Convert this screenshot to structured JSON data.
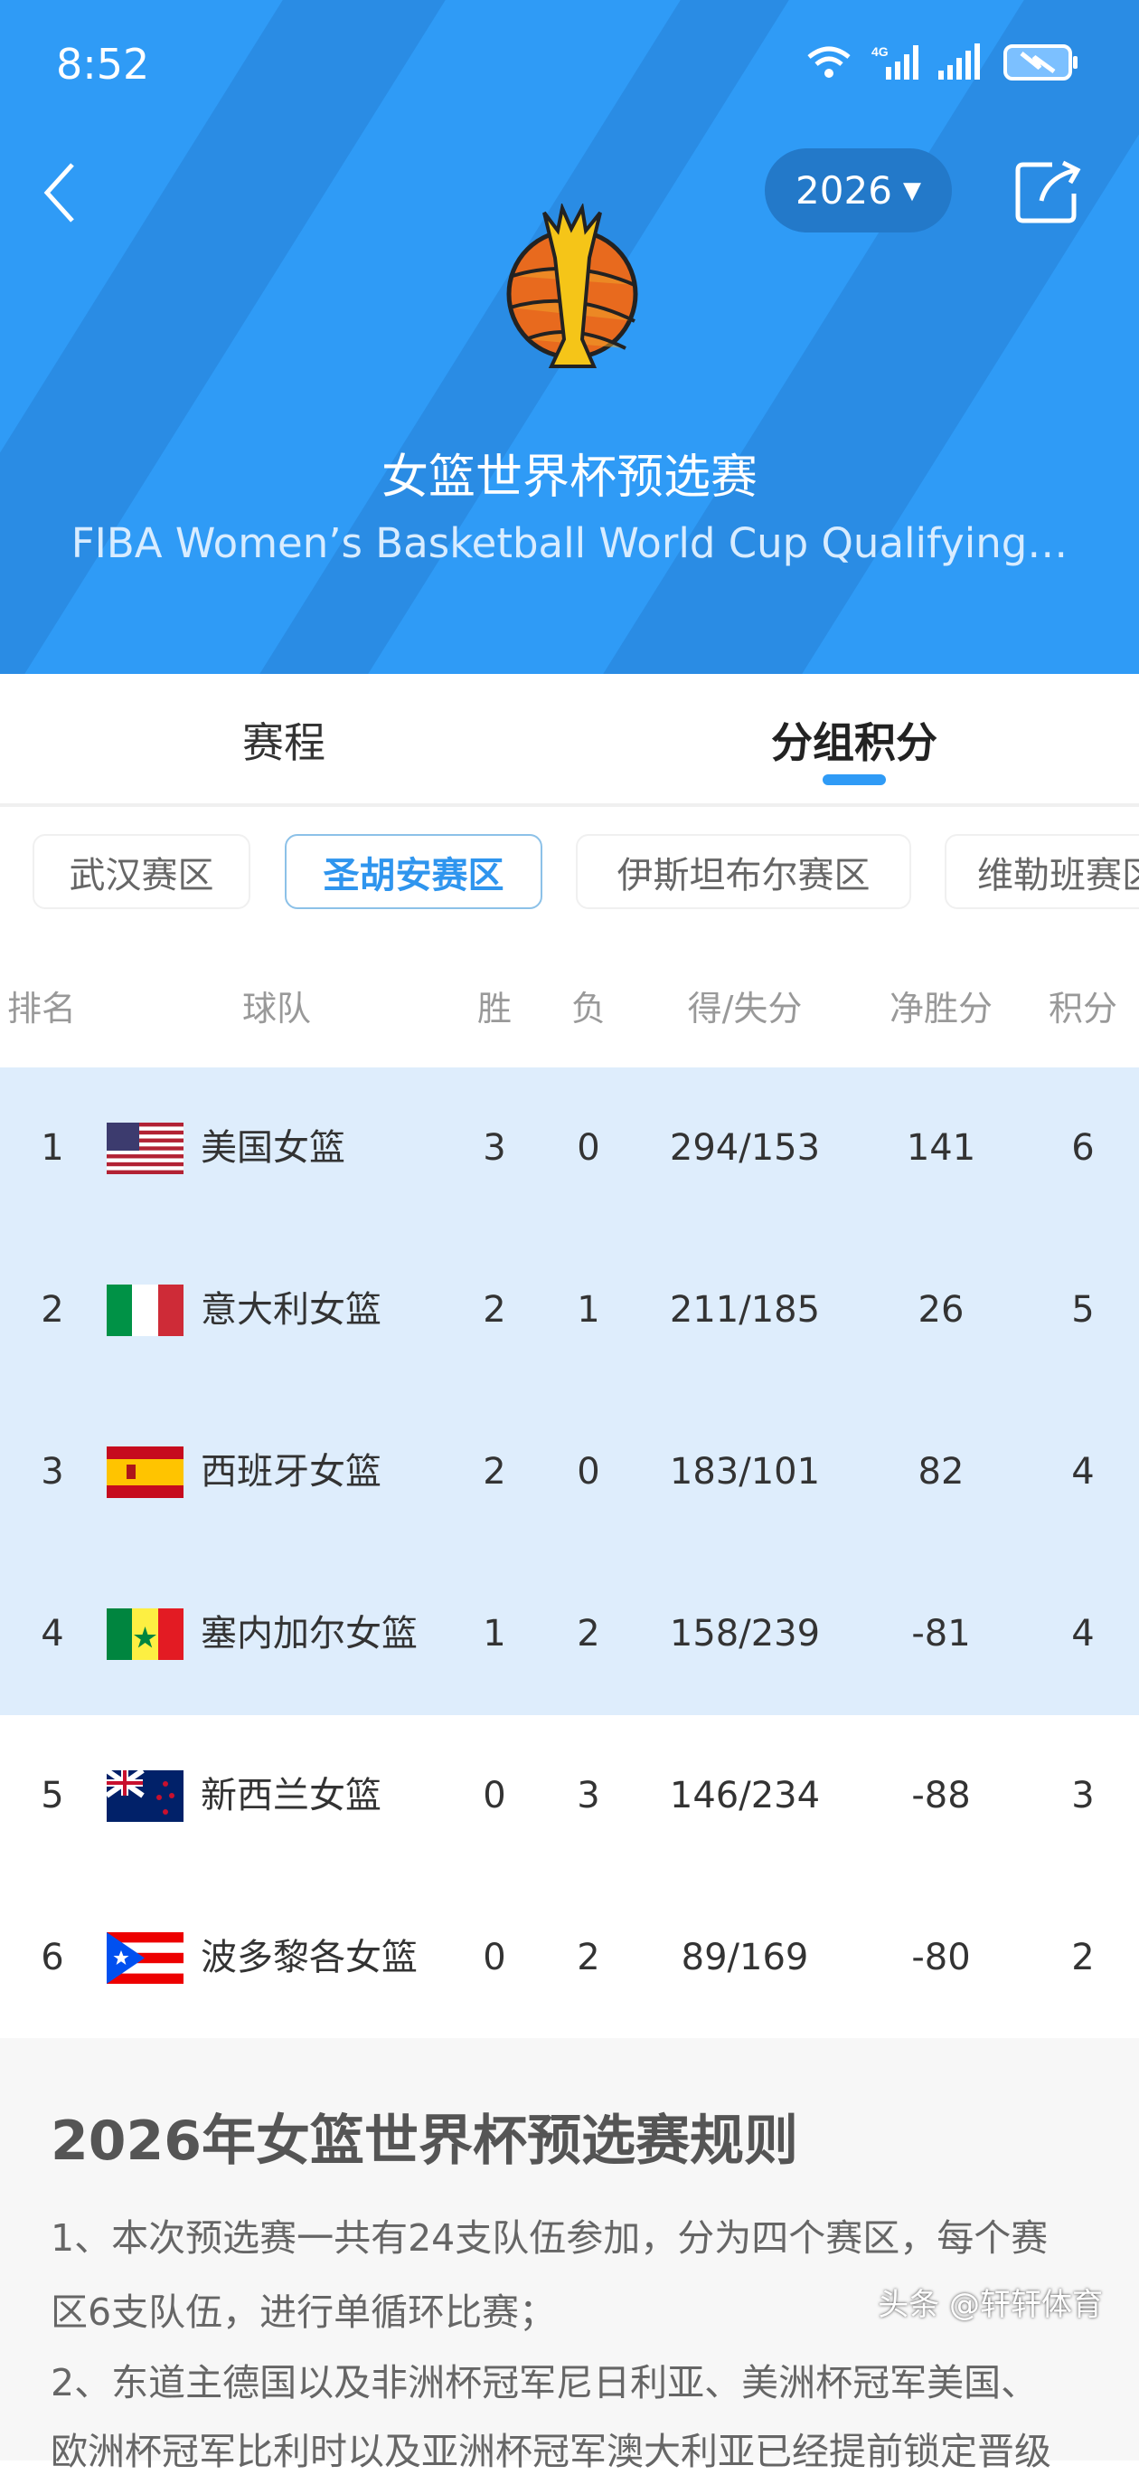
{
  "status_bar": {
    "time": "8:52",
    "network": "4G"
  },
  "header": {
    "year": "2026",
    "title": "女篮世界杯预选赛",
    "subtitle": "FIBA Women’s Basketball World Cup Qualifying…",
    "brand_color": "#2f9bf6"
  },
  "tabs": [
    {
      "label": "赛程",
      "active": false
    },
    {
      "label": "分组积分",
      "active": true
    }
  ],
  "regions": [
    {
      "label": "武汉赛区",
      "active": false
    },
    {
      "label": "圣胡安赛区",
      "active": true
    },
    {
      "label": "伊斯坦布尔赛区",
      "active": false
    },
    {
      "label": "维勒班赛区",
      "active": false
    }
  ],
  "table": {
    "headers": {
      "rank": "排名",
      "team": "球队",
      "w": "胜",
      "l": "负",
      "score": "得/失分",
      "diff": "净胜分",
      "pts": "积分"
    },
    "rows": [
      {
        "rank": "1",
        "flag": "usa",
        "team": "美国女篮",
        "w": "3",
        "l": "0",
        "score": "294/153",
        "diff": "141",
        "pts": "6",
        "highlight": true
      },
      {
        "rank": "2",
        "flag": "italy",
        "team": "意大利女篮",
        "w": "2",
        "l": "1",
        "score": "211/185",
        "diff": "26",
        "pts": "5",
        "highlight": true
      },
      {
        "rank": "3",
        "flag": "spain",
        "team": "西班牙女篮",
        "w": "2",
        "l": "0",
        "score": "183/101",
        "diff": "82",
        "pts": "4",
        "highlight": true
      },
      {
        "rank": "4",
        "flag": "senegal",
        "team": "塞内加尔女篮",
        "w": "1",
        "l": "2",
        "score": "158/239",
        "diff": "-81",
        "pts": "4",
        "highlight": true
      },
      {
        "rank": "5",
        "flag": "new-zealand",
        "team": "新西兰女篮",
        "w": "0",
        "l": "3",
        "score": "146/234",
        "diff": "-88",
        "pts": "3",
        "highlight": false
      },
      {
        "rank": "6",
        "flag": "puerto-rico",
        "team": "波多黎各女篮",
        "w": "0",
        "l": "2",
        "score": "89/169",
        "diff": "-80",
        "pts": "2",
        "highlight": false
      }
    ]
  },
  "rules": {
    "title": "2026年女篮世界杯预选赛规则",
    "lines": [
      "1、本次预选赛一共有24支队伍参加，分为四个赛区，每个赛",
      "区6支队伍，进行单循环比赛；",
      "2、东道主德国以及非洲杯冠军尼日利亚、美洲杯冠军美国、",
      "欧洲杯冠军比利时以及亚洲杯冠军澳大利亚已经提前锁定晋级"
    ]
  },
  "watermark": "头条 @轩轩体育"
}
